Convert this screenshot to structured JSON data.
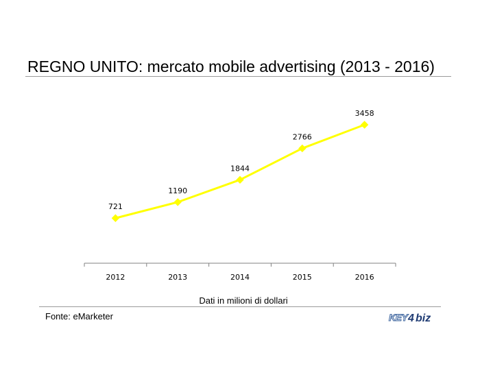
{
  "header": {
    "title": "REGNO UNITO: mercato mobile advertising (2013 - 2016)"
  },
  "footer": {
    "source": "Fonte: eMarketer",
    "logo_text": "KEY4biz"
  },
  "colors": {
    "line": "#ffff00",
    "axis": "#808080",
    "rule": "#9a9a9a"
  },
  "chart_data": {
    "type": "line",
    "title": "REGNO UNITO: mercato mobile advertising (2013 - 2016)",
    "xlabel": "Dati in milioni di dollari",
    "ylabel": "",
    "categories": [
      "2012",
      "2013",
      "2014",
      "2015",
      "2016"
    ],
    "series": [
      {
        "values": [
          721,
          1190,
          1844,
          2766,
          3458
        ]
      }
    ],
    "ylim": [
      -600,
      3900
    ],
    "grid": false,
    "legend": "none",
    "data_labels": true
  }
}
